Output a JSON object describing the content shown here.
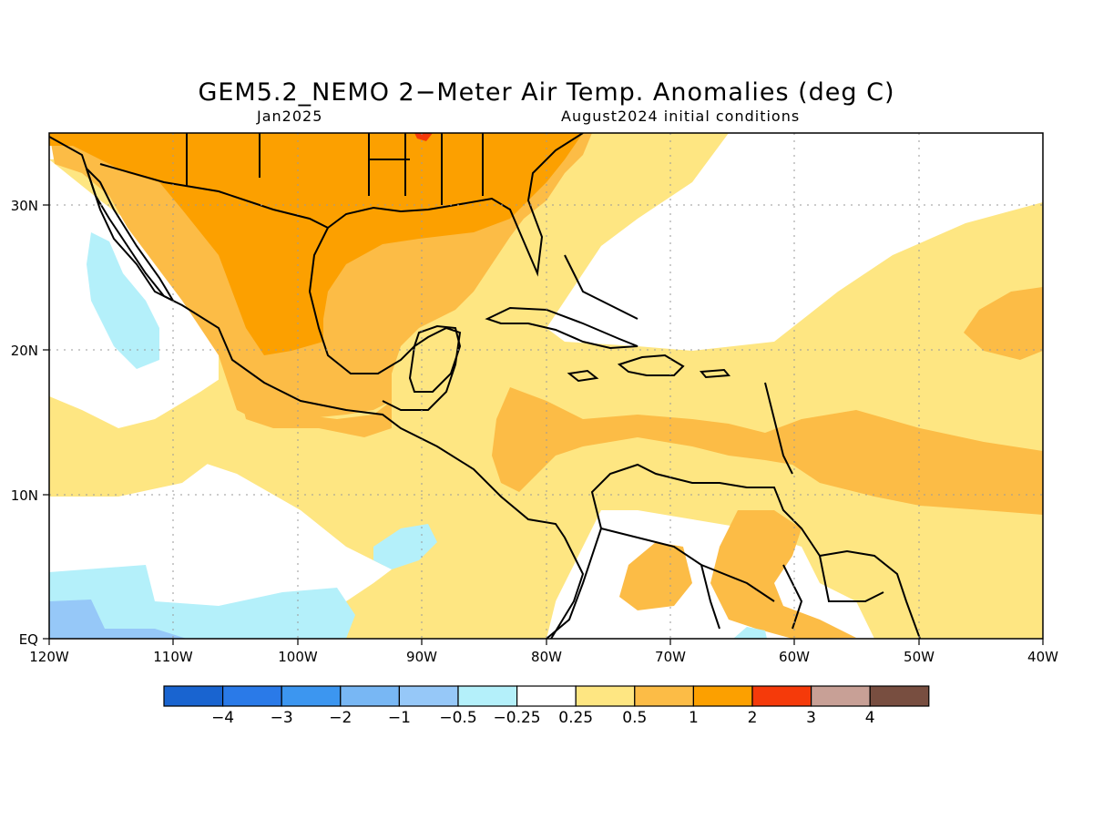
{
  "title": "GEM5.2_NEMO 2−Meter Air Temp. Anomalies (deg C)",
  "valid_month": "Jan2025",
  "init_conditions": "August2024 initial conditions",
  "lon_labels": [
    "120W",
    "110W",
    "100W",
    "90W",
    "80W",
    "70W",
    "60W",
    "50W",
    "40W"
  ],
  "lat_labels": [
    "EQ",
    "10N",
    "20N",
    "30N"
  ],
  "colorbar": {
    "colors": [
      "#1964d0",
      "#2a7ae8",
      "#3c96f0",
      "#78b7f4",
      "#96c8f8",
      "#b4f0fa",
      "#ffffff",
      "#fee682",
      "#fcbc46",
      "#fca000",
      "#f53a0a",
      "#c8a096",
      "#784e40"
    ],
    "labels": [
      "−4",
      "−3",
      "−2",
      "−1",
      "−0.5",
      "−0.25",
      "0.25",
      "0.5",
      "1",
      "2",
      "3",
      "4"
    ]
  },
  "anomaly_colors": {
    "neutral": "#ffffff",
    "pos_low": "#fee682",
    "pos_mid": "#fcbc46",
    "pos_high": "#fca000",
    "pos_peak": "#f53a0a",
    "neg_low": "#b4f0fa",
    "neg_mid": "#96c8f8"
  }
}
